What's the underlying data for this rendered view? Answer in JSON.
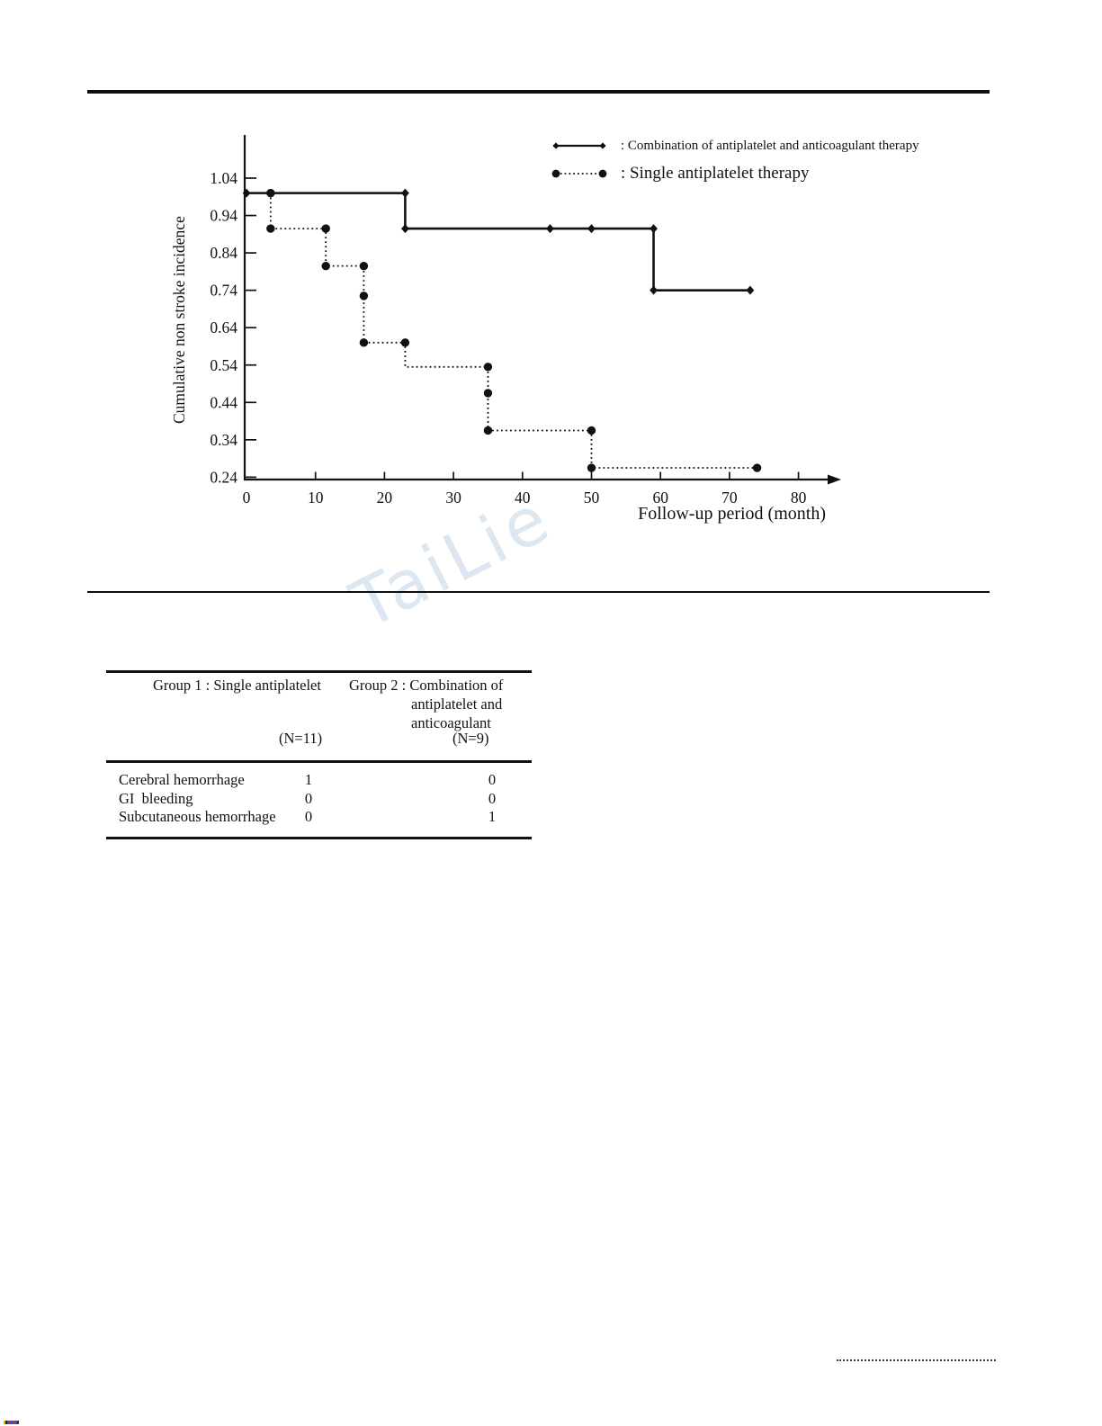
{
  "chart_labels": {
    "legend_item_1": ": Combination of antiplatelet and anticoagulant therapy",
    "legend_item_2": ": Single antiplatelet therapy"
  },
  "chart_data": {
    "type": "line",
    "subtype": "kaplan_meier_step",
    "title": "",
    "xlabel": "Follow-up period (month)",
    "ylabel": "Cumulative non stroke incidence",
    "xlim": [
      0,
      86
    ],
    "ylim": [
      0.24,
      1.08
    ],
    "xticks": [
      0,
      10,
      20,
      30,
      40,
      50,
      60,
      70,
      80
    ],
    "yticks": [
      1.04,
      0.94,
      0.84,
      0.74,
      0.64,
      0.54,
      0.44,
      0.34,
      0.24
    ],
    "grid": false,
    "legend_position": "top-right",
    "line_color": "#111111",
    "series": [
      {
        "name": "Combination of antiplatelet and anticoagulant therapy",
        "line_style": "solid",
        "marker": "diamond",
        "points": [
          [
            0,
            1.0
          ],
          [
            23,
            1.0
          ],
          [
            23,
            0.905
          ],
          [
            59,
            0.905
          ],
          [
            59,
            0.74
          ],
          [
            73,
            0.74
          ]
        ],
        "marker_points": [
          [
            0,
            1.0
          ],
          [
            23,
            1.0
          ],
          [
            23,
            0.905
          ],
          [
            44,
            0.905
          ],
          [
            50,
            0.905
          ],
          [
            59,
            0.905
          ],
          [
            59,
            0.74
          ],
          [
            73,
            0.74
          ]
        ]
      },
      {
        "name": "Single antiplatelet therapy",
        "line_style": "dotted",
        "marker": "circle",
        "points": [
          [
            3.5,
            1.0
          ],
          [
            3.5,
            0.905
          ],
          [
            11.5,
            0.905
          ],
          [
            11.5,
            0.805
          ],
          [
            17,
            0.805
          ],
          [
            17,
            0.6
          ],
          [
            23,
            0.6
          ],
          [
            23,
            0.535
          ],
          [
            35,
            0.535
          ],
          [
            35,
            0.365
          ],
          [
            50,
            0.365
          ],
          [
            50,
            0.265
          ],
          [
            74,
            0.265
          ]
        ],
        "marker_points": [
          [
            3.5,
            1.0
          ],
          [
            3.5,
            0.905
          ],
          [
            11.5,
            0.905
          ],
          [
            11.5,
            0.805
          ],
          [
            17,
            0.805
          ],
          [
            17,
            0.725
          ],
          [
            17,
            0.6
          ],
          [
            23,
            0.6
          ],
          [
            35,
            0.535
          ],
          [
            35,
            0.465
          ],
          [
            35,
            0.365
          ],
          [
            50,
            0.365
          ],
          [
            50,
            0.265
          ],
          [
            74,
            0.265
          ]
        ]
      }
    ]
  },
  "watermark_text": "TaiLie",
  "table": {
    "header": {
      "group1": "Group 1 : Single antiplatelet",
      "group1_n": "(N=11)",
      "group2_line1": "Group 2 : Combination of",
      "group2_line2": "antiplatelet and",
      "group2_line3": "anticoagulant",
      "group2_n": "(N=9)"
    },
    "rows": [
      {
        "label": "Cerebral hemorrhage",
        "values": [
          "1",
          "0"
        ]
      },
      {
        "label": "GI  bleeding",
        "values": [
          "0",
          "0"
        ]
      },
      {
        "label": "Subcutaneous hemorrhage",
        "values": [
          "0",
          "1"
        ]
      }
    ]
  },
  "print_artifact_colors": [
    "#d8c800",
    "#222222",
    "#2a52c8",
    "#c03030",
    "#2a52c8",
    "#8a3a8a",
    "#2a52c8",
    "#333333"
  ]
}
